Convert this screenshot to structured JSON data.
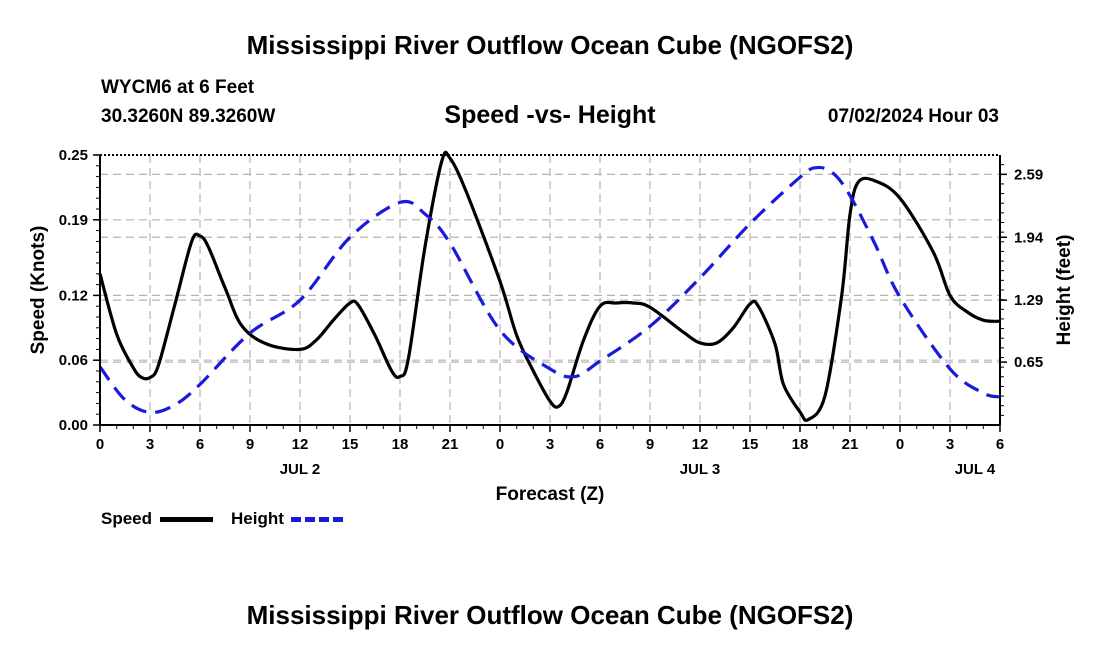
{
  "header": {
    "title": "Mississippi River Outflow Ocean Cube (NGOFS2)",
    "station": "WYCM6 at 6 Feet",
    "coords": "30.3260N  89.3260W",
    "subtitle": "Speed -vs- Height",
    "timestamp": "07/02/2024 Hour 03"
  },
  "footer": {
    "title": "Mississippi River Outflow Ocean Cube (NGOFS2)"
  },
  "legend": {
    "speed_label": "Speed",
    "height_label": "Height"
  },
  "colors": {
    "speed": "#000000",
    "height": "#1a1adb",
    "grid": "#b4b4b4"
  },
  "chart_data": {
    "type": "line",
    "xlabel": "Forecast (Z)",
    "ylabel": "Speed (Knots)",
    "y2label": "Height (feet)",
    "xlim": [
      0,
      54
    ],
    "ylim": [
      0,
      0.25
    ],
    "y2lim": [
      0,
      2.79
    ],
    "x_ticks": [
      0,
      3,
      6,
      9,
      12,
      15,
      18,
      21,
      24,
      27,
      30,
      33,
      36,
      39,
      42,
      45,
      48,
      51,
      54
    ],
    "x_tick_labels": [
      "0",
      "3",
      "6",
      "9",
      "12",
      "15",
      "18",
      "21",
      "0",
      "3",
      "6",
      "9",
      "12",
      "15",
      "18",
      "21",
      "0",
      "3",
      "6"
    ],
    "y_ticks": [
      0,
      0.06,
      0.12,
      0.19,
      0.25
    ],
    "y_tick_labels": [
      "0.00",
      "0.06",
      "0.12",
      "0.19",
      "0.25"
    ],
    "y2_ticks": [
      0.65,
      1.29,
      1.94,
      2.59
    ],
    "y2_tick_labels": [
      "0.65",
      "1.29",
      "1.94",
      "2.59"
    ],
    "day_labels": [
      {
        "x": 12,
        "label": "JUL 2"
      },
      {
        "x": 36,
        "label": "JUL 3"
      },
      {
        "x": 52.5,
        "label": "JUL 4"
      }
    ],
    "grid": true,
    "series": [
      {
        "name": "Speed",
        "axis": "left",
        "style": "solid",
        "x": [
          0,
          1,
          2,
          2.5,
          3,
          3.5,
          4.5,
          5.5,
          6,
          6.5,
          7.5,
          8.5,
          10,
          12,
          13,
          14,
          15,
          15.5,
          16.5,
          17.5,
          18,
          18.5,
          19.5,
          20.5,
          21,
          22,
          24,
          25,
          26,
          27,
          27.5,
          28,
          29,
          30,
          31,
          32,
          33,
          35,
          36,
          37,
          38,
          39,
          39.5,
          40.5,
          41,
          42,
          42.5,
          43.5,
          44.5,
          45,
          45.5,
          46.5,
          48,
          50,
          51,
          52,
          53,
          54
        ],
        "y": [
          0.14,
          0.084,
          0.053,
          0.044,
          0.044,
          0.055,
          0.112,
          0.17,
          0.175,
          0.165,
          0.127,
          0.092,
          0.075,
          0.07,
          0.079,
          0.097,
          0.113,
          0.111,
          0.083,
          0.05,
          0.045,
          0.061,
          0.165,
          0.244,
          0.247,
          0.215,
          0.133,
          0.083,
          0.05,
          0.022,
          0.017,
          0.03,
          0.078,
          0.11,
          0.113,
          0.113,
          0.109,
          0.086,
          0.076,
          0.076,
          0.09,
          0.112,
          0.11,
          0.075,
          0.038,
          0.012,
          0.005,
          0.027,
          0.12,
          0.195,
          0.225,
          0.226,
          0.21,
          0.16,
          0.12,
          0.105,
          0.097,
          0.096
        ]
      },
      {
        "name": "Height",
        "axis": "right",
        "style": "dashed",
        "x": [
          0,
          1.5,
          3,
          4.5,
          6,
          9,
          12,
          15,
          18,
          19.5,
          21,
          24,
          27,
          28.5,
          30,
          33,
          36,
          39,
          42,
          43,
          44,
          45,
          46.5,
          48,
          51,
          53,
          54
        ],
        "y": [
          0.6,
          0.26,
          0.13,
          0.21,
          0.42,
          0.95,
          1.29,
          1.94,
          2.3,
          2.18,
          1.88,
          0.98,
          0.58,
          0.5,
          0.66,
          1.02,
          1.52,
          2.08,
          2.56,
          2.66,
          2.6,
          2.37,
          1.87,
          1.32,
          0.58,
          0.33,
          0.29
        ]
      }
    ]
  }
}
